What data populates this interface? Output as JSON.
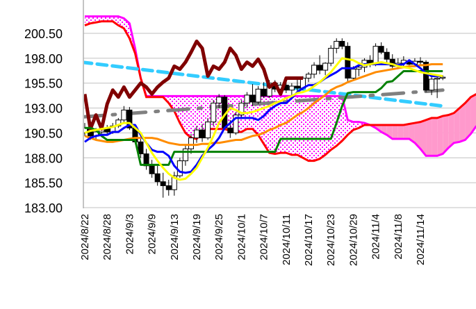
{
  "chart_data": {
    "type": "candlestick",
    "title": "",
    "xlabel": "",
    "ylabel": "",
    "ylim": [
      183.0,
      200.5
    ],
    "grid": true,
    "y_ticks": [
      "183.00",
      "185.50",
      "188.00",
      "190.50",
      "193.00",
      "195.50",
      "198.00",
      "200.50"
    ],
    "y_tick_values": [
      183.0,
      185.5,
      188.0,
      190.5,
      193.0,
      195.5,
      198.0,
      200.5
    ],
    "x_ticks": [
      "2024/8/22",
      "2024/8/28",
      "2024/9/3",
      "2024/9/9",
      "2024/9/13",
      "2024/9/19",
      "2024/9/25",
      "2024/10/1",
      "2024/10/7",
      "2024/10/11",
      "2024/10/17",
      "2024/10/23",
      "2024/10/29",
      "2024/11/4",
      "2024/11/8",
      "2024/11/14"
    ],
    "x_tick_interval_days": 4,
    "candles": [
      [
        190.5,
        191.5,
        190.2,
        191.0
      ],
      [
        191.0,
        191.3,
        189.8,
        190.2
      ],
      [
        190.2,
        191.0,
        189.9,
        190.6
      ],
      [
        190.6,
        191.2,
        190.2,
        190.9
      ],
      [
        190.9,
        191.3,
        190.4,
        190.6
      ],
      [
        190.6,
        191.5,
        190.4,
        191.2
      ],
      [
        191.2,
        192.0,
        191.0,
        191.8
      ],
      [
        191.8,
        193.2,
        191.5,
        192.8
      ],
      [
        192.8,
        193.1,
        190.8,
        191.0
      ],
      [
        191.0,
        191.2,
        189.4,
        189.6
      ],
      [
        189.6,
        190.2,
        188.0,
        188.4
      ],
      [
        188.4,
        188.9,
        186.8,
        187.2
      ],
      [
        187.2,
        187.8,
        186.0,
        186.4
      ],
      [
        186.4,
        187.2,
        185.2,
        185.6
      ],
      [
        185.6,
        186.5,
        184.0,
        185.2
      ],
      [
        185.2,
        185.8,
        184.2,
        184.8
      ],
      [
        184.8,
        186.6,
        184.2,
        186.2
      ],
      [
        186.2,
        188.0,
        186.0,
        187.7
      ],
      [
        187.7,
        189.3,
        187.2,
        188.9
      ],
      [
        188.9,
        190.4,
        188.4,
        190.0
      ],
      [
        190.0,
        191.2,
        189.5,
        190.8
      ],
      [
        190.8,
        191.4,
        189.6,
        190.0
      ],
      [
        190.0,
        192.0,
        189.8,
        191.6
      ],
      [
        191.6,
        193.8,
        191.2,
        193.5
      ],
      [
        193.5,
        194.4,
        193.0,
        194.1
      ],
      [
        194.1,
        194.3,
        190.8,
        191.0
      ],
      [
        191.0,
        191.8,
        190.0,
        190.5
      ],
      [
        190.5,
        192.6,
        190.3,
        192.3
      ],
      [
        192.3,
        193.8,
        192.0,
        193.5
      ],
      [
        193.5,
        194.6,
        193.0,
        194.3
      ],
      [
        194.3,
        195.4,
        193.2,
        193.6
      ],
      [
        193.6,
        195.2,
        193.4,
        194.9
      ],
      [
        194.9,
        195.6,
        194.0,
        194.2
      ],
      [
        194.2,
        195.8,
        194.0,
        195.5
      ],
      [
        195.5,
        195.8,
        194.6,
        194.9
      ],
      [
        194.9,
        195.6,
        194.3,
        195.3
      ],
      [
        195.3,
        195.6,
        194.5,
        194.8
      ],
      [
        194.8,
        195.5,
        194.3,
        195.2
      ],
      [
        195.2,
        195.9,
        194.6,
        195.0
      ],
      [
        195.0,
        196.2,
        194.8,
        196.0
      ],
      [
        196.0,
        196.6,
        195.6,
        196.4
      ],
      [
        196.4,
        197.6,
        196.0,
        197.3
      ],
      [
        197.3,
        198.3,
        196.4,
        196.8
      ],
      [
        196.8,
        197.6,
        196.3,
        197.5
      ],
      [
        197.5,
        199.3,
        197.2,
        199.0
      ],
      [
        199.0,
        200.0,
        198.5,
        199.7
      ],
      [
        199.7,
        200.0,
        198.9,
        199.2
      ],
      [
        199.2,
        199.6,
        195.7,
        196.0
      ],
      [
        196.0,
        197.2,
        195.8,
        196.9
      ],
      [
        196.9,
        197.6,
        196.2,
        197.1
      ],
      [
        197.1,
        198.0,
        196.6,
        197.8
      ],
      [
        197.8,
        198.3,
        197.1,
        197.4
      ],
      [
        197.4,
        199.5,
        197.2,
        199.2
      ],
      [
        199.2,
        199.6,
        198.4,
        198.6
      ],
      [
        198.6,
        199.0,
        197.6,
        197.9
      ],
      [
        197.9,
        198.4,
        196.9,
        197.2
      ],
      [
        197.2,
        198.0,
        196.9,
        197.5
      ],
      [
        197.5,
        198.2,
        197.0,
        197.8
      ],
      [
        197.6,
        197.9,
        197.0,
        197.4
      ],
      [
        197.4,
        198.0,
        197.2,
        197.7
      ],
      [
        197.7,
        198.1,
        197.2,
        197.6
      ],
      [
        197.6,
        197.8,
        194.6,
        194.8
      ],
      [
        194.8,
        196.1,
        194.3,
        195.9
      ],
      [
        195.9,
        196.2,
        194.0,
        196.0
      ],
      [
        196.0,
        196.3,
        195.8,
        196.1
      ]
    ],
    "candle_fields": [
      "open",
      "high",
      "low",
      "close"
    ],
    "colors": {
      "up_body": "#ffffff",
      "down_body": "#000000",
      "cloud_dots": "#ff00ff",
      "cloud_solid": "#ff99cc",
      "grid": "#c0c0c0"
    },
    "lines": [
      {
        "color": "#800000",
        "width": 5,
        "dash": "",
        "values": [
          194.4,
          190.9,
          192.3,
          190.9,
          193.4,
          194.8,
          194.1,
          195.1,
          194.1,
          194.8,
          195.5,
          195.1,
          194.4,
          195.1,
          195.6,
          196.0,
          197.2,
          196.9,
          197.6,
          198.6,
          199.7,
          199.0,
          196.2,
          197.2,
          196.9,
          197.6,
          199.0,
          198.3,
          196.9,
          197.6,
          197.2,
          197.9,
          196.9,
          195.1,
          195.5,
          194.4,
          196.0,
          196.0,
          196.0,
          196.0
        ]
      },
      {
        "color": "#ff8c00",
        "width": 3,
        "dash": "",
        "values": [
          190.2,
          190.0,
          189.8,
          189.7,
          189.6,
          189.6,
          189.7,
          189.8,
          189.9,
          190.0,
          190.0,
          190.0,
          190.0,
          189.9,
          189.7,
          189.5,
          189.4,
          189.3,
          189.3,
          189.3,
          189.3,
          189.4,
          189.4,
          189.5,
          189.5,
          189.6,
          189.7,
          189.8,
          189.8,
          190.0,
          190.2,
          190.3,
          190.5,
          190.8,
          191.0,
          191.3,
          191.5,
          191.9,
          192.3,
          192.6,
          193.0,
          193.5,
          193.9,
          194.3,
          194.8,
          195.1,
          195.3,
          195.6,
          195.8,
          196.0,
          196.2,
          196.4,
          196.6,
          196.7,
          196.8,
          196.9,
          197.0,
          197.1,
          197.2,
          197.2,
          197.3,
          197.3,
          197.4,
          197.4,
          197.4
        ]
      },
      {
        "color": "#008000",
        "width": 3,
        "dash": "",
        "values": [
          191.0,
          191.0,
          190.8,
          190.2,
          189.8,
          189.8,
          189.8,
          189.8,
          189.8,
          189.8,
          187.3,
          187.3,
          187.3,
          187.3,
          187.3,
          187.3,
          188.6,
          188.6,
          188.6,
          188.6,
          188.6,
          188.6,
          188.6,
          188.6,
          188.6,
          188.6,
          188.6,
          188.6,
          188.6,
          188.6,
          188.6,
          188.6,
          188.6,
          188.6,
          188.6,
          189.9,
          189.9,
          189.9,
          189.9,
          189.9,
          189.9,
          189.9,
          189.9,
          189.9,
          189.9,
          191.5,
          193.2,
          194.5,
          194.6,
          194.6,
          194.6,
          194.6,
          194.6,
          195.0,
          195.6,
          195.7,
          196.2,
          196.7,
          196.7,
          196.7,
          196.7,
          196.7,
          196.7,
          196.7,
          196.7
        ]
      },
      {
        "color": "#0000ff",
        "width": 3,
        "dash": "",
        "values": [
          189.6,
          190.0,
          190.2,
          190.3,
          190.3,
          190.6,
          190.6,
          191.0,
          191.3,
          191.3,
          190.3,
          189.5,
          188.8,
          188.6,
          188.6,
          188.2,
          187.2,
          186.6,
          186.5,
          186.6,
          187.3,
          188.2,
          188.8,
          189.3,
          190.0,
          191.0,
          191.5,
          192.0,
          192.0,
          192.0,
          192.0,
          191.8,
          192.2,
          192.8,
          193.2,
          193.5,
          193.5,
          194.0,
          194.6,
          195.0,
          195.3,
          195.3,
          195.6,
          196.0,
          196.3,
          196.6,
          197.0,
          197.0,
          197.0,
          197.3,
          197.4,
          197.4,
          197.4,
          197.4,
          197.4,
          197.4,
          197.3,
          197.4,
          197.8,
          197.4,
          197.0,
          196.5,
          196.2,
          196.2,
          196.2
        ]
      },
      {
        "color": "#ffff00",
        "width": 3,
        "dash": "",
        "values": [
          190.5,
          190.7,
          190.8,
          190.9,
          191.0,
          191.1,
          191.3,
          191.5,
          191.5,
          191.0,
          190.5,
          189.5,
          188.5,
          187.7,
          187.0,
          186.4,
          186.0,
          185.8,
          185.9,
          186.4,
          187.0,
          188.0,
          189.0,
          190.2,
          191.5,
          192.3,
          193.0,
          192.8,
          192.5,
          192.5,
          192.6,
          192.8,
          193.0,
          193.2,
          193.5,
          193.7,
          194.0,
          194.2,
          194.5,
          194.6,
          194.8,
          195.2,
          195.6,
          196.1,
          196.6,
          197.3,
          198.0,
          197.9,
          197.8,
          197.5,
          197.3,
          197.4,
          197.5,
          197.6,
          197.5,
          197.4,
          197.2,
          197.1,
          197.0,
          196.8,
          196.6,
          196.5,
          196.4,
          196.3,
          196.2
        ]
      }
    ],
    "cloud": {
      "span_a": [
        202.2,
        202.2,
        202.2,
        202.2,
        202.2,
        202.2,
        202.2,
        202.0,
        201.5,
        199.0,
        196.0,
        194.2,
        194.2,
        194.2,
        194.2,
        194.2,
        194.2,
        194.2,
        194.2,
        194.2,
        194.2,
        194.2,
        194.2,
        194.2,
        194.2,
        194.2,
        194.2,
        194.2,
        194.2,
        194.2,
        194.2,
        194.2,
        194.2,
        194.2,
        194.2,
        194.2,
        194.2,
        194.2,
        194.2,
        194.2,
        194.2,
        194.2,
        194.2,
        194.2,
        194.2,
        194.2,
        194.2,
        191.8,
        191.6,
        191.6,
        191.5,
        191.3,
        191.0,
        190.6,
        190.3,
        189.9,
        189.9,
        189.9,
        189.9,
        189.5,
        188.9,
        188.2,
        188.2,
        188.2,
        188.4,
        189.0,
        189.5,
        189.6,
        189.8,
        190.4,
        191.2
      ],
      "span_b": [
        201.3,
        201.5,
        201.6,
        201.7,
        201.7,
        201.7,
        201.3,
        201.0,
        200.0,
        198.5,
        196.0,
        194.1,
        194.1,
        194.1,
        194.1,
        193.5,
        192.7,
        191.5,
        190.5,
        190.0,
        189.9,
        190.6,
        190.9,
        190.9,
        190.9,
        190.9,
        190.7,
        190.6,
        190.6,
        190.9,
        190.9,
        190.3,
        189.4,
        188.5,
        188.4,
        188.5,
        188.5,
        188.3,
        188.3,
        188.0,
        187.7,
        187.7,
        187.9,
        188.3,
        188.8,
        189.2,
        189.7,
        190.3,
        190.8,
        191.0,
        191.3,
        191.3,
        191.3,
        191.3,
        191.3,
        191.3,
        191.3,
        191.3,
        191.4,
        191.5,
        191.6,
        191.8,
        192.0,
        192.0,
        192.2,
        192.3,
        192.5,
        193.0,
        193.5,
        194.1,
        194.4
      ]
    },
    "trendlines": [
      {
        "color": "#33ccff",
        "dash": "14,8",
        "from": [
          0,
          197.6
        ],
        "to": [
          64,
          193.2
        ]
      },
      {
        "color": "#808080",
        "dash": "30,14,4,14",
        "from": [
          0,
          192.1
        ],
        "to": [
          64,
          194.8
        ]
      }
    ]
  }
}
